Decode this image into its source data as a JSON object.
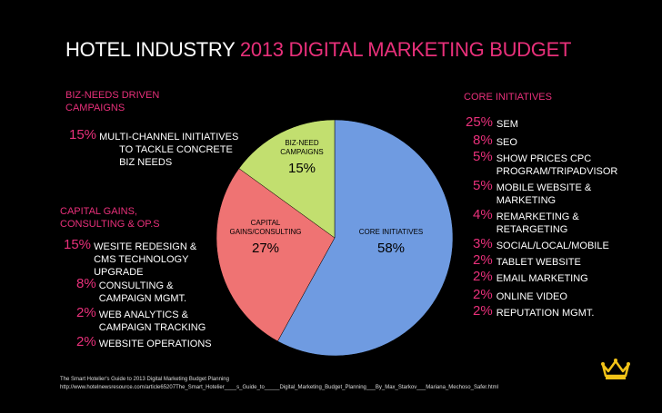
{
  "title": {
    "main": "HOTEL INDUSTRY",
    "accent": "2013 DIGITAL MARKETING BUDGET"
  },
  "chart_data": {
    "type": "pie",
    "title": "HOTEL INDUSTRY 2013 DIGITAL MARKETING BUDGET",
    "slices": [
      {
        "label": "CORE INITIATIVES",
        "value": 58,
        "display": "58%",
        "color": "#6f9be1"
      },
      {
        "label": "CAPITAL GAINS/CONSULTING",
        "value": 27,
        "display": "27%",
        "color": "#ef7373"
      },
      {
        "label": "BIZ-NEED CAMPAIGNS",
        "value": 15,
        "display": "15%",
        "color": "#c2df6f"
      }
    ]
  },
  "biz": {
    "header": "BIZ-NEEDS DRIVEN CAMPAIGNS",
    "items": [
      {
        "pct": "15%",
        "label": "MULTI-CHANNEL INITIATIVES TO TACKLE CONCRETE BIZ NEEDS"
      }
    ]
  },
  "capital": {
    "header": "CAPITAL GAINS, CONSULTING & OP.S",
    "items": [
      {
        "pct": "15%",
        "label": "WESITE REDESIGN & CMS TECHNOLOGY UPGRADE"
      },
      {
        "pct": "8%",
        "label": "CONSULTING & CAMPAIGN MGMT."
      },
      {
        "pct": "2%",
        "label": "WEB ANALYTICS & CAMPAIGN TRACKING"
      },
      {
        "pct": "2%",
        "label": "WEBSITE OPERATIONS"
      }
    ]
  },
  "core": {
    "header": "CORE INITIATIVES",
    "items": [
      {
        "pct": "25%",
        "label": "SEM"
      },
      {
        "pct": "8%",
        "label": "SEO"
      },
      {
        "pct": "5%",
        "label": "SHOW PRICES CPC PROGRAM/TRIPADVISOR"
      },
      {
        "pct": "5%",
        "label": "MOBILE WEBSITE & MARKETING"
      },
      {
        "pct": "4%",
        "label": "REMARKETING & RETARGETING"
      },
      {
        "pct": "3%",
        "label": "SOCIAL/LOCAL/MOBILE"
      },
      {
        "pct": "2%",
        "label": "TABLET WEBSITE"
      },
      {
        "pct": "2%",
        "label": "EMAIL MARKETING"
      },
      {
        "pct": "2%",
        "label": "ONLINE VIDEO"
      },
      {
        "pct": "2%",
        "label": "REPUTATION MGMT."
      }
    ]
  },
  "footer": {
    "line1": "The Smart Hotelier's Guide to 2013 Digital Marketing Budget Planning",
    "line2": "http://www.hotelnewsresource.com/article65207The_Smart_Hotelier____s_Guide_to_____Digital_Marketing_Budget_Planning___By_Max_Starkov___Mariana_Mechoso_Safer.html"
  },
  "logo": {
    "icon": "crown-icon",
    "color": "#f2c318"
  }
}
